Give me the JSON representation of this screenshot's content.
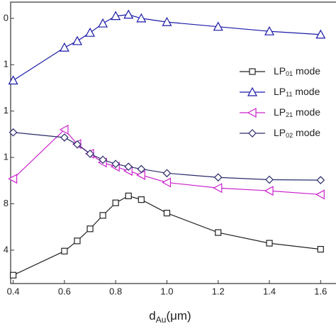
{
  "chart_data": {
    "type": "line",
    "x_label": [
      "d",
      "Au",
      "(μm)"
    ],
    "x": [
      0.4,
      0.6,
      0.65,
      0.7,
      0.75,
      0.8,
      0.85,
      0.9,
      1.0,
      1.2,
      1.4,
      1.6
    ],
    "xlim": [
      0.39,
      1.66
    ],
    "xticks": [
      0.4,
      0.6,
      0.8,
      {
        "value": 1.0,
        "label": "1.0"
      },
      1.2,
      1.4,
      1.6
    ],
    "ylim": [
      -0.72,
      5.35
    ],
    "yticks": [
      {
        "value": 5,
        "label": "0"
      },
      {
        "value": 4,
        "label": "1"
      },
      {
        "value": 3,
        "label": "1"
      },
      {
        "value": 2,
        "label": "1"
      },
      {
        "value": 1,
        "label": "8"
      },
      {
        "value": 0,
        "label": "4"
      }
    ],
    "series": [
      {
        "name": [
          "LP",
          "01",
          " mode"
        ],
        "color": "#222222",
        "marker": "square",
        "values": [
          -0.54,
          -0.02,
          0.2,
          0.46,
          0.75,
          1.02,
          1.17,
          1.09,
          0.8,
          0.38,
          0.15,
          0.02
        ]
      },
      {
        "name": [
          "LP",
          "11",
          " mode"
        ],
        "color": "#1a1aa8",
        "marker": "triangle-up",
        "values": [
          3.66,
          4.37,
          4.51,
          4.69,
          4.89,
          5.05,
          5.08,
          5.0,
          4.92,
          4.82,
          4.72,
          4.65
        ]
      },
      {
        "name": [
          "LP",
          "21",
          " mode"
        ],
        "color": "#cc22cc",
        "marker": "triangle-left",
        "values": [
          1.54,
          2.6,
          2.29,
          2.08,
          1.89,
          1.8,
          1.71,
          1.62,
          1.46,
          1.34,
          1.28,
          1.2
        ]
      },
      {
        "name": [
          "LP",
          "02",
          " mode"
        ],
        "color": "#2a2a6a",
        "marker": "diamond",
        "values": [
          2.54,
          2.43,
          2.28,
          2.08,
          1.95,
          1.86,
          1.8,
          1.75,
          1.66,
          1.57,
          1.52,
          1.51
        ]
      }
    ]
  }
}
